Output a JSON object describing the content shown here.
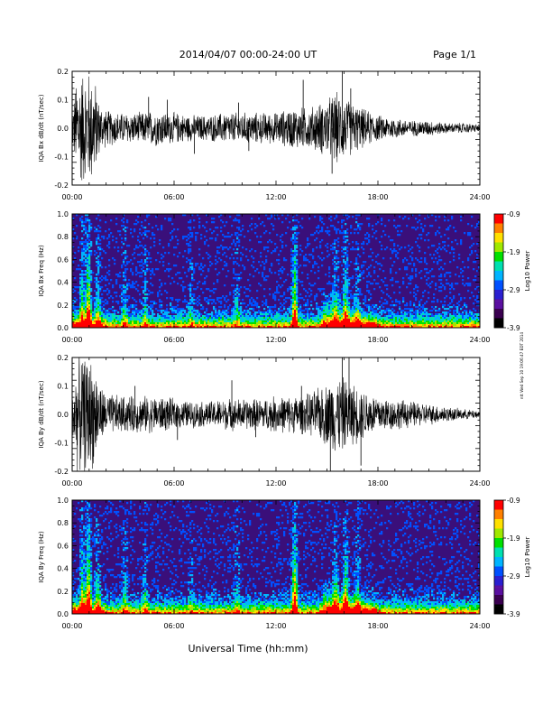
{
  "header": {
    "date_range": "2014/04/07  00:00-24:00 UT",
    "page": "Page 1/1"
  },
  "side_note": "ntt Wed Sep 10 19:06:47 EDT 2014",
  "chart_data": [
    {
      "type": "line",
      "ylabel": "IQA Bx dB/dt (nT/sec)",
      "ylim": [
        -0.2,
        0.2
      ],
      "yticks": [
        "0.2",
        "0.1",
        "0.0",
        "-0.1",
        "-0.2"
      ],
      "xlim": [
        0,
        24
      ],
      "xticks": [
        "00:00",
        "06:00",
        "12:00",
        "18:00",
        "24:00"
      ],
      "envelope": {
        "x": [
          0,
          0.3,
          0.5,
          0.8,
          1.0,
          1.3,
          1.6,
          2,
          3,
          4,
          5,
          6,
          7,
          8,
          9,
          10,
          11,
          12,
          13,
          14,
          15,
          15.5,
          16,
          16.5,
          17,
          18,
          19,
          20,
          21,
          22,
          23,
          24
        ],
        "amp": [
          0.06,
          0.22,
          0.22,
          0.22,
          0.22,
          0.2,
          0.1,
          0.07,
          0.06,
          0.06,
          0.07,
          0.06,
          0.05,
          0.05,
          0.06,
          0.06,
          0.06,
          0.06,
          0.08,
          0.08,
          0.11,
          0.14,
          0.12,
          0.1,
          0.08,
          0.05,
          0.04,
          0.03,
          0.03,
          0.02,
          0.02,
          0.015
        ]
      },
      "spikes": [
        {
          "x": 4.5,
          "y": 0.11
        },
        {
          "x": 5.6,
          "y": 0.1
        },
        {
          "x": 7.2,
          "y": -0.09
        },
        {
          "x": 9.8,
          "y": 0.09
        },
        {
          "x": 10.4,
          "y": -0.08
        },
        {
          "x": 13.6,
          "y": 0.17
        },
        {
          "x": 15.3,
          "y": -0.16
        },
        {
          "x": 15.9,
          "y": 0.22
        },
        {
          "x": 16.4,
          "y": 0.14
        }
      ]
    },
    {
      "type": "heatmap",
      "ylabel": "IQA Bx Freq (Hz)",
      "ylim": [
        0,
        1.0
      ],
      "yticks": [
        "1.0",
        "0.8",
        "0.6",
        "0.4",
        "0.2",
        "0.0"
      ],
      "xlim": [
        0,
        24
      ],
      "xticks": [
        "00:00",
        "06:00",
        "12:00",
        "18:00",
        "24:00"
      ],
      "colorbar": {
        "label": "Log10 Power",
        "range": [
          -3.9,
          -0.9
        ],
        "ticks": [
          "-0.9",
          "-1.9",
          "-2.9",
          "-3.9"
        ],
        "colors": [
          "#000000",
          "#3a0050",
          "#5a0fa0",
          "#2a1fd0",
          "#0050ff",
          "#00b4ff",
          "#00e0b0",
          "#00e000",
          "#a0e800",
          "#ffe000",
          "#ff8000",
          "#ff0000"
        ]
      },
      "event_columns": [
        {
          "x": 0.6,
          "strength": 0.5
        },
        {
          "x": 0.95,
          "strength": 0.85
        },
        {
          "x": 1.5,
          "strength": 0.4
        },
        {
          "x": 3.1,
          "strength": 0.3
        },
        {
          "x": 4.3,
          "strength": 0.25
        },
        {
          "x": 7.0,
          "strength": 0.2
        },
        {
          "x": 9.7,
          "strength": 0.25
        },
        {
          "x": 13.1,
          "strength": 0.8
        },
        {
          "x": 15.5,
          "strength": 0.35
        },
        {
          "x": 16.1,
          "strength": 0.5
        },
        {
          "x": 16.8,
          "strength": 0.3
        }
      ]
    },
    {
      "type": "line",
      "ylabel": "IQA By dB/dt (nT/sec)",
      "ylim": [
        -0.2,
        0.2
      ],
      "yticks": [
        "0.2",
        "0.1",
        "0.0",
        "-0.1",
        "-0.2"
      ],
      "xlim": [
        0,
        24
      ],
      "xticks": [
        "00:00",
        "06:00",
        "12:00",
        "18:00",
        "24:00"
      ],
      "envelope": {
        "x": [
          0,
          0.3,
          0.5,
          0.8,
          1.0,
          1.3,
          1.6,
          2,
          3,
          4,
          5,
          6,
          7,
          8,
          9,
          10,
          11,
          12,
          13,
          14,
          15,
          15.5,
          16,
          16.5,
          17,
          18,
          19,
          20,
          21,
          22,
          23,
          24
        ],
        "amp": [
          0.06,
          0.22,
          0.22,
          0.22,
          0.22,
          0.2,
          0.12,
          0.08,
          0.07,
          0.07,
          0.07,
          0.06,
          0.05,
          0.05,
          0.06,
          0.06,
          0.06,
          0.07,
          0.07,
          0.08,
          0.12,
          0.15,
          0.14,
          0.12,
          0.1,
          0.07,
          0.06,
          0.05,
          0.04,
          0.03,
          0.02,
          0.015
        ]
      },
      "spikes": [
        {
          "x": 3.7,
          "y": 0.1
        },
        {
          "x": 6.2,
          "y": -0.09
        },
        {
          "x": 9.4,
          "y": 0.12
        },
        {
          "x": 10.8,
          "y": -0.08
        },
        {
          "x": 13.5,
          "y": 0.1
        },
        {
          "x": 15.2,
          "y": -0.2
        },
        {
          "x": 15.9,
          "y": 0.22
        },
        {
          "x": 16.3,
          "y": 0.21
        },
        {
          "x": 17.0,
          "y": -0.18
        }
      ]
    },
    {
      "type": "heatmap",
      "ylabel": "IQA By Freq (Hz)",
      "ylim": [
        0,
        1.0
      ],
      "yticks": [
        "1.0",
        "0.8",
        "0.6",
        "0.4",
        "0.2",
        "0.0"
      ],
      "xlim": [
        0,
        24
      ],
      "xticks": [
        "00:00",
        "06:00",
        "12:00",
        "18:00",
        "24:00"
      ],
      "colorbar": {
        "label": "Log10 Power",
        "range": [
          -3.9,
          -0.9
        ],
        "ticks": [
          "-0.9",
          "-1.9",
          "-2.9",
          "-3.9"
        ],
        "colors": [
          "#000000",
          "#3a0050",
          "#5a0fa0",
          "#2a1fd0",
          "#0050ff",
          "#00b4ff",
          "#00e0b0",
          "#00e000",
          "#a0e800",
          "#ffe000",
          "#ff8000",
          "#ff0000"
        ]
      },
      "event_columns": [
        {
          "x": 0.6,
          "strength": 0.55
        },
        {
          "x": 0.95,
          "strength": 0.9
        },
        {
          "x": 1.5,
          "strength": 0.45
        },
        {
          "x": 3.1,
          "strength": 0.3
        },
        {
          "x": 4.3,
          "strength": 0.25
        },
        {
          "x": 7.0,
          "strength": 0.2
        },
        {
          "x": 9.7,
          "strength": 0.25
        },
        {
          "x": 13.1,
          "strength": 0.85
        },
        {
          "x": 15.5,
          "strength": 0.4
        },
        {
          "x": 16.1,
          "strength": 0.6
        },
        {
          "x": 16.8,
          "strength": 0.35
        }
      ]
    }
  ],
  "xlabel": "Universal Time (hh:mm)"
}
